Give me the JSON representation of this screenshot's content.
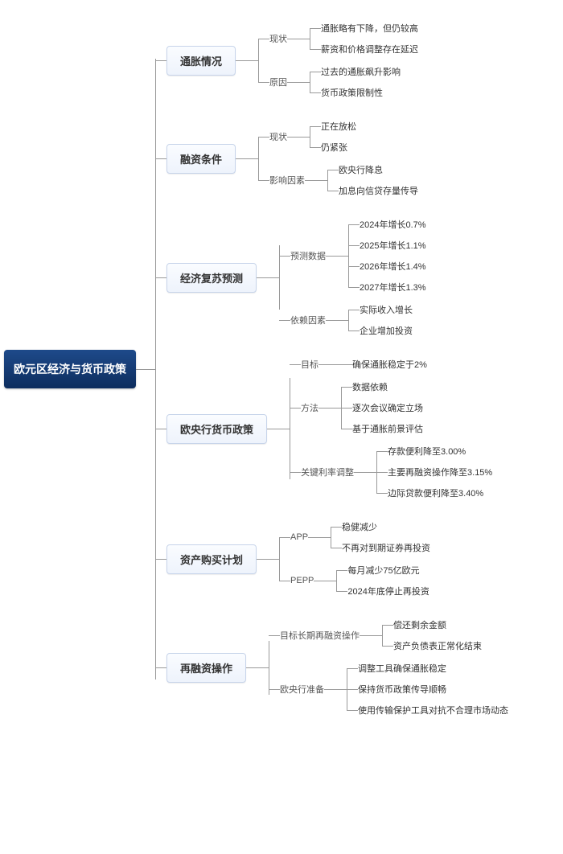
{
  "root": "欧元区经济与货币政策",
  "branches": [
    {
      "label": "通胀情况",
      "sub": [
        {
          "label": "现状",
          "items": [
            "通胀略有下降，但仍较高",
            "薪资和价格调整存在延迟"
          ]
        },
        {
          "label": "原因",
          "items": [
            "过去的通胀飙升影响",
            "货币政策限制性"
          ]
        }
      ]
    },
    {
      "label": "融资条件",
      "sub": [
        {
          "label": "现状",
          "items": [
            "正在放松",
            "仍紧张"
          ]
        },
        {
          "label": "影响因素",
          "items": [
            "欧央行降息",
            "加息向信贷存量传导"
          ]
        }
      ]
    },
    {
      "label": "经济复苏预测",
      "sub": [
        {
          "label": "预测数据",
          "items": [
            "2024年增长0.7%",
            "2025年增长1.1%",
            "2026年增长1.4%",
            "2027年增长1.3%"
          ]
        },
        {
          "label": "依赖因素",
          "items": [
            "实际收入增长",
            "企业增加投资"
          ]
        }
      ]
    },
    {
      "label": "欧央行货币政策",
      "sub": [
        {
          "label": "目标",
          "items": [
            "确保通胀稳定于2%"
          ]
        },
        {
          "label": "方法",
          "items": [
            "数据依赖",
            "逐次会议确定立场",
            "基于通胀前景评估"
          ]
        },
        {
          "label": "关键利率调整",
          "items": [
            "存款便利降至3.00%",
            "主要再融资操作降至3.15%",
            "边际贷款便利降至3.40%"
          ]
        }
      ]
    },
    {
      "label": "资产购买计划",
      "sub": [
        {
          "label": "APP",
          "items": [
            "稳健减少",
            "不再对到期证券再投资"
          ]
        },
        {
          "label": "PEPP",
          "items": [
            "每月减少75亿欧元",
            "2024年底停止再投资"
          ]
        }
      ]
    },
    {
      "label": "再融资操作",
      "sub": [
        {
          "label": "目标长期再融资操作",
          "items": [
            "偿还剩余金额",
            "资产负债表正常化结束"
          ]
        },
        {
          "label": "欧央行准备",
          "items": [
            "调整工具确保通胀稳定",
            "保持货币政策传导顺畅",
            "使用传输保护工具对抗不合理市场动态"
          ]
        }
      ]
    }
  ]
}
